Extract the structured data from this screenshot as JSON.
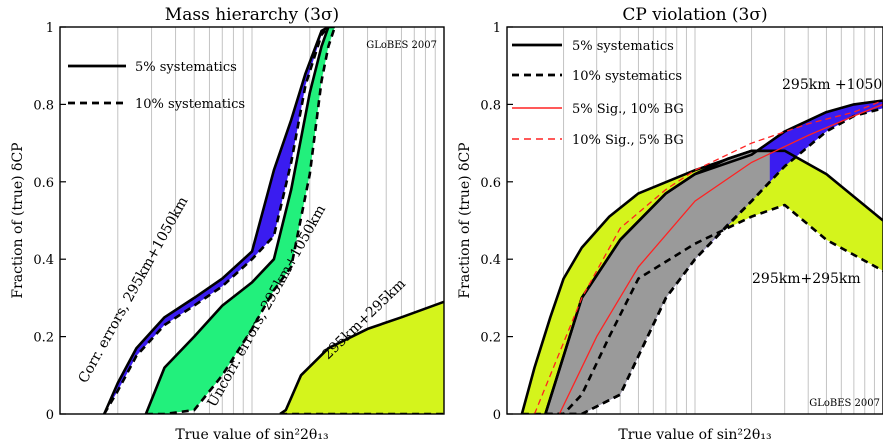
{
  "chart_data": [
    {
      "type": "area",
      "title": "Mass hierarchy (3σ)",
      "xlabel": "True value of sin²2θ₁₃",
      "ylabel": "Fraction of (true) δCP",
      "xscale": "log",
      "xlim": [
        0.0001,
        0.01
      ],
      "ylim": [
        0,
        1
      ],
      "yticks": [
        "0",
        "0.2",
        "0.4",
        "0.6",
        "0.8",
        "1"
      ],
      "grid": "vertical",
      "watermark": "GLoBES 2007",
      "legend": {
        "placement": "top-left",
        "entries": [
          {
            "label": "5% systematics",
            "style": "solid"
          },
          {
            "label": "10% systematics",
            "style": "dashed"
          }
        ]
      },
      "annotations": [
        {
          "text": "Corr. errors, 295km+1050km"
        },
        {
          "text": "Uncorr. errors, 295km+1050km"
        },
        {
          "text": "295km+295km"
        }
      ],
      "bands": [
        {
          "color": "#3a1cf0",
          "x": [
            0.00017,
            0.0002,
            0.00025,
            0.00035,
            0.0005,
            0.0007,
            0.001,
            0.0013,
            0.0016,
            0.0019,
            0.0023,
            0.0025
          ],
          "solid": [
            0,
            0.08,
            0.17,
            0.25,
            0.3,
            0.35,
            0.42,
            0.63,
            0.76,
            0.88,
            0.99,
            1.0
          ],
          "dashed": [
            0,
            0.06,
            0.15,
            0.23,
            0.28,
            0.33,
            0.4,
            0.46,
            0.65,
            0.85,
            0.98,
            1.0
          ]
        },
        {
          "color": "#22f07c",
          "x": [
            0.00028,
            0.00035,
            0.0005,
            0.0007,
            0.001,
            0.0013,
            0.0016,
            0.002,
            0.0023,
            0.0025,
            0.0027
          ],
          "solid": [
            0,
            0.12,
            0.2,
            0.28,
            0.34,
            0.4,
            0.58,
            0.83,
            0.95,
            1.0,
            1.0
          ],
          "dashed": [
            0,
            0,
            0.01,
            0.1,
            0.22,
            0.32,
            0.38,
            0.62,
            0.86,
            0.95,
            1.0
          ]
        },
        {
          "color": "#d4f41c",
          "x": [
            0.0014,
            0.0015,
            0.0018,
            0.0025,
            0.004,
            0.006,
            0.01
          ],
          "solid": [
            0,
            0.01,
            0.1,
            0.17,
            0.22,
            0.25,
            0.29
          ],
          "dashed": [
            0,
            0,
            0,
            0,
            0,
            0,
            0
          ]
        }
      ]
    },
    {
      "type": "area",
      "title": "CP violation (3σ)",
      "xlabel": "True value of sin²2θ₁₃",
      "ylabel": "Fraction of (true) δCP",
      "xscale": "log",
      "xlim": [
        0.0001,
        0.01
      ],
      "ylim": [
        0,
        1
      ],
      "yticks": [
        "0",
        "0.2",
        "0.4",
        "0.6",
        "0.8",
        "1"
      ],
      "grid": "vertical",
      "watermark": "GLoBES 2007",
      "legend": {
        "placement": "top-left",
        "entries": [
          {
            "label": "5% systematics",
            "style": "solid",
            "color": "#000000"
          },
          {
            "label": "10% systematics",
            "style": "dashed",
            "color": "#000000"
          },
          {
            "label": "5% Sig., 10% BG",
            "style": "solid",
            "color": "#ff2222"
          },
          {
            "label": "10% Sig., 5% BG",
            "style": "dashed",
            "color": "#ff2222"
          }
        ]
      },
      "annotations": [
        {
          "text": "295km +1050km"
        },
        {
          "text": "295km+295km"
        }
      ],
      "bands": [
        {
          "color": "#d4f41c",
          "x": [
            0.00012,
            0.00014,
            0.00017,
            0.0002,
            0.00025,
            0.00035,
            0.0005,
            0.001,
            0.002,
            0.003,
            0.005,
            0.01
          ],
          "solid": [
            0,
            0.12,
            0.25,
            0.35,
            0.43,
            0.51,
            0.57,
            0.63,
            0.68,
            0.68,
            0.62,
            0.5
          ],
          "dashed": [
            0,
            0,
            0,
            0,
            0.05,
            0.2,
            0.35,
            0.44,
            0.51,
            0.54,
            0.45,
            0.37
          ]
        },
        {
          "color": "#3a1cf0",
          "x": [
            0.00016,
            0.00025,
            0.0004,
            0.0007,
            0.001,
            0.002,
            0.003,
            0.005,
            0.007,
            0.01
          ],
          "solid": [
            0,
            0.3,
            0.45,
            0.57,
            0.62,
            0.67,
            0.73,
            0.78,
            0.8,
            0.81
          ],
          "dashed": [
            0,
            0,
            0.05,
            0.3,
            0.4,
            0.55,
            0.64,
            0.73,
            0.77,
            0.79
          ]
        },
        {
          "color": "#9a9a9a",
          "x": [
            0.00016,
            0.00025,
            0.0004,
            0.0007,
            0.001,
            0.0015,
            0.002,
            0.0025
          ],
          "solid": [
            0,
            0.3,
            0.45,
            0.57,
            0.62,
            0.66,
            0.68,
            0.68
          ],
          "dashed": [
            0,
            0,
            0.05,
            0.3,
            0.4,
            0.49,
            0.55,
            0.6
          ]
        }
      ],
      "red_lines": [
        {
          "style": "solid",
          "x": [
            0.00019,
            0.0003,
            0.0005,
            0.001,
            0.002,
            0.004,
            0.007,
            0.01
          ],
          "y": [
            0,
            0.2,
            0.38,
            0.55,
            0.65,
            0.72,
            0.77,
            0.8
          ]
        },
        {
          "style": "dashed",
          "x": [
            0.00014,
            0.00025,
            0.0004,
            0.0007,
            0.001,
            0.002,
            0.004,
            0.007,
            0.01
          ],
          "y": [
            0,
            0.3,
            0.48,
            0.58,
            0.63,
            0.7,
            0.75,
            0.78,
            0.81
          ]
        }
      ]
    }
  ]
}
